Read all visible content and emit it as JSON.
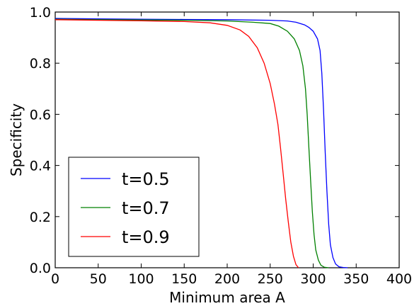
{
  "chart_data": {
    "type": "line",
    "title": "",
    "xlabel": "Minimum area A",
    "ylabel": "Specificity",
    "xlim": [
      0,
      400
    ],
    "ylim": [
      0.0,
      1.0
    ],
    "xticks": [
      0,
      50,
      100,
      150,
      200,
      250,
      300,
      350,
      400
    ],
    "xtick_labels": [
      "0",
      "50",
      "100",
      "150",
      "200",
      "250",
      "300",
      "350",
      "400"
    ],
    "yticks": [
      0.0,
      0.2,
      0.4,
      0.6,
      0.8,
      1.0
    ],
    "ytick_labels": [
      "0.0",
      "0.2",
      "0.4",
      "0.6",
      "0.8",
      "1.0"
    ],
    "grid": false,
    "legend_position": "lower-left",
    "series": [
      {
        "name": "t=0.5",
        "color": "#0000ff",
        "x": [
          0,
          50,
          100,
          150,
          200,
          250,
          270,
          280,
          290,
          295,
          300,
          305,
          308,
          310,
          312,
          314,
          316,
          318,
          320,
          323,
          326,
          330,
          335,
          340
        ],
        "y": [
          0.975,
          0.973,
          0.972,
          0.971,
          0.97,
          0.968,
          0.965,
          0.96,
          0.95,
          0.94,
          0.925,
          0.895,
          0.85,
          0.76,
          0.62,
          0.45,
          0.3,
          0.17,
          0.09,
          0.04,
          0.015,
          0.004,
          0.001,
          0.0
        ]
      },
      {
        "name": "t=0.7",
        "color": "#008000",
        "x": [
          0,
          50,
          100,
          150,
          200,
          230,
          250,
          260,
          270,
          278,
          284,
          288,
          291,
          293,
          295,
          297,
          299,
          301,
          303,
          306,
          309,
          313,
          318
        ],
        "y": [
          0.972,
          0.97,
          0.969,
          0.968,
          0.965,
          0.96,
          0.955,
          0.945,
          0.925,
          0.895,
          0.85,
          0.79,
          0.7,
          0.6,
          0.47,
          0.34,
          0.22,
          0.13,
          0.07,
          0.03,
          0.01,
          0.002,
          0.0
        ]
      },
      {
        "name": "t=0.9",
        "color": "#ff0000",
        "x": [
          0,
          50,
          100,
          150,
          180,
          200,
          215,
          225,
          235,
          243,
          250,
          255,
          259,
          262,
          265,
          268,
          271,
          274,
          277,
          280,
          283
        ],
        "y": [
          0.97,
          0.968,
          0.966,
          0.963,
          0.958,
          0.948,
          0.93,
          0.905,
          0.86,
          0.8,
          0.72,
          0.64,
          0.56,
          0.47,
          0.37,
          0.27,
          0.18,
          0.1,
          0.045,
          0.012,
          0.0
        ]
      }
    ]
  }
}
